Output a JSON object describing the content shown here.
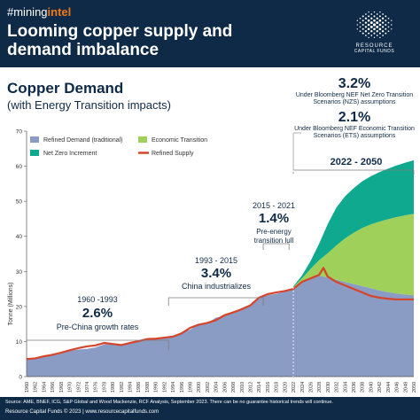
{
  "header": {
    "hashtag_prefix": "#mining",
    "hashtag_highlight": "intel",
    "title": "Looming copper supply and demand imbalance",
    "logo_line1": "RESOURCE",
    "logo_line2": "CAPITAL FUNDS",
    "background_color": "#0e2a47",
    "accent_color": "#f07a1a"
  },
  "subtitle": {
    "line1": "Copper Demand",
    "line2": "(with Energy Transition impacts)"
  },
  "scenarios": {
    "nzs_rate": "3.2%",
    "nzs_text": "Under Bloomberg NEF Net Zero Transition Scenarios (NZS) assumptions",
    "ets_rate": "2.1%",
    "ets_text": "Under Bloomberg NEF Economic Transition Scenarios (ETS) assumptions",
    "period": "2022 - 2050"
  },
  "annotations": {
    "a1960": {
      "period": "1960 -1993",
      "rate": "2.6%",
      "text": "Pre-China growth rates"
    },
    "a1993": {
      "period": "1993 - 2015",
      "rate": "3.4%",
      "text": "China industrializes"
    },
    "a2015": {
      "period": "2015 - 2021",
      "rate": "1.4%",
      "text1": "Pre-energy",
      "text2": "transition lull"
    }
  },
  "footer": {
    "source": "Source: AME, BNEF, ICG, S&P Global and Wood Mackenzie, RCF Analysis, September 2023.  There can be no guarantee historical trends will continue.",
    "copyright": "Resource Capital Funds © 2023  |  www.resourcecapitalfunds.com"
  },
  "chart_data": {
    "type": "area",
    "ylabel": "Tonne (Millions)",
    "ylim": [
      0,
      70
    ],
    "yticks": [
      0,
      10,
      20,
      30,
      40,
      50,
      60,
      70
    ],
    "xtick_labels": [
      "1960",
      "1962",
      "1964",
      "1966",
      "1968",
      "1970",
      "1972",
      "1974",
      "1976",
      "1978",
      "1980",
      "1982",
      "1984",
      "1986",
      "1988",
      "1990",
      "1992",
      "1994",
      "1996",
      "1998",
      "2000",
      "2002",
      "2004",
      "2006",
      "2008",
      "2010",
      "2012",
      "2014",
      "2016",
      "2018",
      "2020",
      "2022",
      "2024",
      "2026",
      "2028",
      "2030",
      "2032",
      "2034",
      "2036",
      "2038",
      "2040",
      "2042",
      "2044",
      "2046",
      "2048",
      "2050"
    ],
    "legend_placement": "top-left",
    "grid": false,
    "colors": {
      "refined_demand": "#8a9bc4",
      "economic_transition": "#9fd15a",
      "net_zero_increment": "#0fa98f",
      "refined_supply": "#d6442a",
      "axis": "#555555"
    },
    "series": [
      {
        "name": "Refined Demand (traditional)",
        "x": [
          1960,
          1962,
          1964,
          1966,
          1968,
          1970,
          1972,
          1974,
          1976,
          1978,
          1980,
          1982,
          1984,
          1986,
          1988,
          1990,
          1992,
          1994,
          1996,
          1998,
          2000,
          2002,
          2004,
          2006,
          2008,
          2010,
          2012,
          2014,
          2016,
          2018,
          2020,
          2022,
          2024,
          2026,
          2028,
          2030,
          2032,
          2034,
          2036,
          2038,
          2040,
          2042,
          2044,
          2046,
          2048,
          2050
        ],
        "values": [
          4.9,
          5.2,
          5.7,
          6.0,
          6.5,
          7.3,
          7.7,
          7.9,
          8.3,
          9.2,
          9.5,
          9.1,
          9.7,
          10.2,
          10.8,
          11.0,
          11.2,
          11.6,
          12.5,
          13.4,
          14.9,
          15.2,
          16.8,
          17.2,
          18.2,
          19.6,
          20.5,
          22.8,
          23.2,
          23.6,
          24.2,
          25.2,
          26.8,
          28.2,
          28.8,
          28.2,
          27.6,
          27.0,
          26.4,
          25.8,
          25.2,
          24.6,
          24.1,
          23.7,
          23.4,
          23.2
        ]
      },
      {
        "name": "Economic Transition",
        "x": [
          2022,
          2024,
          2026,
          2028,
          2030,
          2032,
          2034,
          2036,
          2038,
          2040,
          2042,
          2044,
          2046,
          2048,
          2050
        ],
        "values": [
          0.3,
          1.2,
          2.5,
          4.4,
          7.0,
          9.8,
          12.4,
          14.6,
          16.6,
          18.2,
          19.6,
          20.8,
          21.8,
          22.6,
          23.2
        ]
      },
      {
        "name": "Net Zero Increment",
        "x": [
          2022,
          2024,
          2026,
          2028,
          2030,
          2032,
          2034,
          2036,
          2038,
          2040,
          2042,
          2044,
          2046,
          2048,
          2050
        ],
        "values": [
          0.2,
          0.8,
          2.2,
          4.7,
          8.3,
          10.8,
          12.0,
          12.7,
          13.3,
          13.7,
          14.1,
          14.4,
          14.7,
          15.0,
          15.3
        ]
      },
      {
        "name": "Refined Supply",
        "x": [
          1960,
          1962,
          1964,
          1966,
          1968,
          1970,
          1972,
          1974,
          1976,
          1978,
          1980,
          1982,
          1984,
          1986,
          1988,
          1990,
          1992,
          1994,
          1996,
          1998,
          2000,
          2002,
          2004,
          2006,
          2008,
          2010,
          2012,
          2014,
          2016,
          2018,
          2020,
          2022,
          2024,
          2026,
          2028,
          2029,
          2030,
          2032,
          2034,
          2036,
          2038,
          2040,
          2042,
          2044,
          2046,
          2048,
          2050
        ],
        "values": [
          5.0,
          5.2,
          5.8,
          6.2,
          6.8,
          7.5,
          8.1,
          8.6,
          8.9,
          9.6,
          9.3,
          9.0,
          9.6,
          10.1,
          10.7,
          10.8,
          11.1,
          11.4,
          12.3,
          13.9,
          14.8,
          15.3,
          16.1,
          17.5,
          18.3,
          19.2,
          20.3,
          22.5,
          23.5,
          24.0,
          24.4,
          25.0,
          27.0,
          28.0,
          29.0,
          31.0,
          28.5,
          27.0,
          26.0,
          25.0,
          24.0,
          23.0,
          22.5,
          22.2,
          22.0,
          22.0,
          22.0
        ]
      }
    ]
  }
}
